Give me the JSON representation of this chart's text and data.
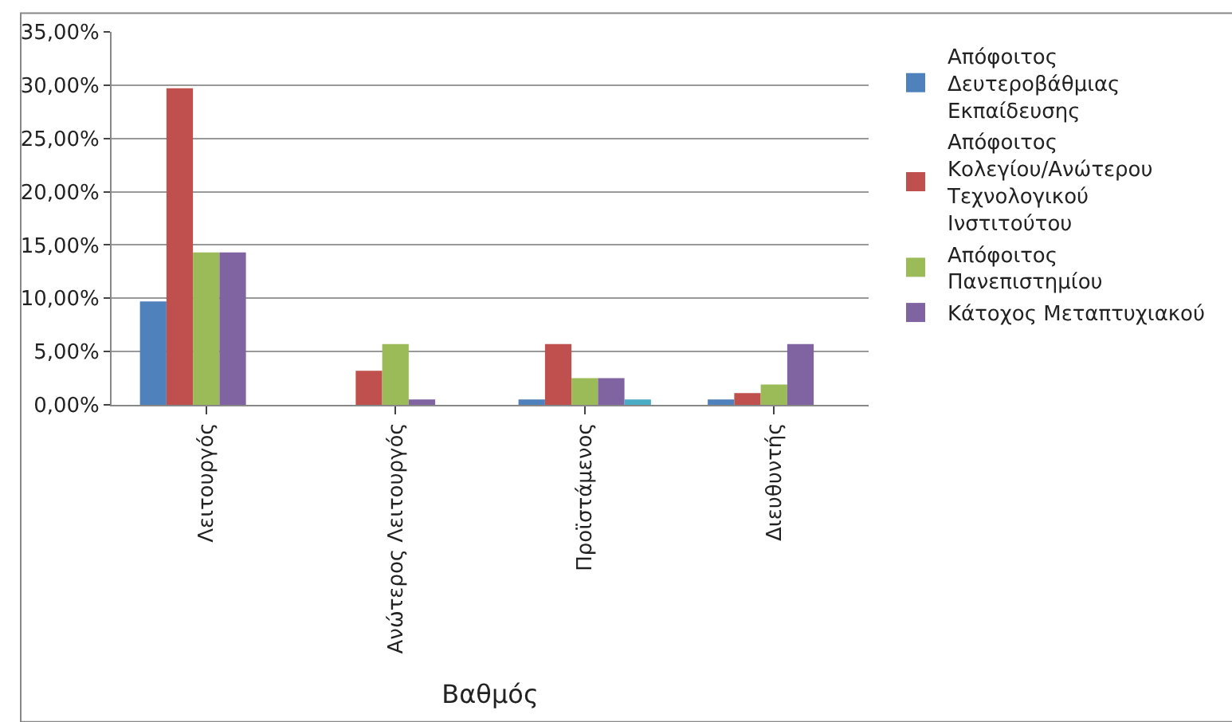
{
  "chart_data": {
    "type": "bar",
    "xlabel": "Βαθμός",
    "categories": [
      "Λειτουργός",
      "Ανώτερος Λειτουργός",
      "Προϊστάμενος",
      "Διευθυντής"
    ],
    "series": [
      {
        "name": "Απόφοιτος Δευτεροβάθμιας Εκπαίδευσης",
        "color": "#4f81bd",
        "values": [
          9.7,
          0,
          0.5,
          0.5
        ]
      },
      {
        "name": "Απόφοιτος Κολεγίου/Ανώτερου Τεχνολογικού Ινστιτούτου",
        "color": "#c0504d",
        "values": [
          29.7,
          3.2,
          5.7,
          1.1
        ]
      },
      {
        "name": "Απόφοιτος Πανεπιστημίου",
        "color": "#9bbb59",
        "values": [
          14.3,
          5.7,
          2.5,
          1.9
        ]
      },
      {
        "name": "Κάτοχος Μεταπτυχιακού",
        "color": "#8064a2",
        "values": [
          14.3,
          0.5,
          2.5,
          5.7
        ]
      },
      {
        "color": "#4bacc6",
        "values": [
          0,
          0,
          0.5,
          0
        ]
      }
    ],
    "ylim": [
      0,
      35
    ],
    "yticks": [
      {
        "value": 0,
        "label": "0,00%"
      },
      {
        "value": 5,
        "label": "5,00%"
      },
      {
        "value": 10,
        "label": "10,00%"
      },
      {
        "value": 15,
        "label": "15,00%"
      },
      {
        "value": 20,
        "label": "20,00%"
      },
      {
        "value": 25,
        "label": "25,00%"
      },
      {
        "value": 30,
        "label": "30,00%"
      },
      {
        "value": 35,
        "label": "35,00%"
      }
    ],
    "grid": "y",
    "legend": "right"
  }
}
